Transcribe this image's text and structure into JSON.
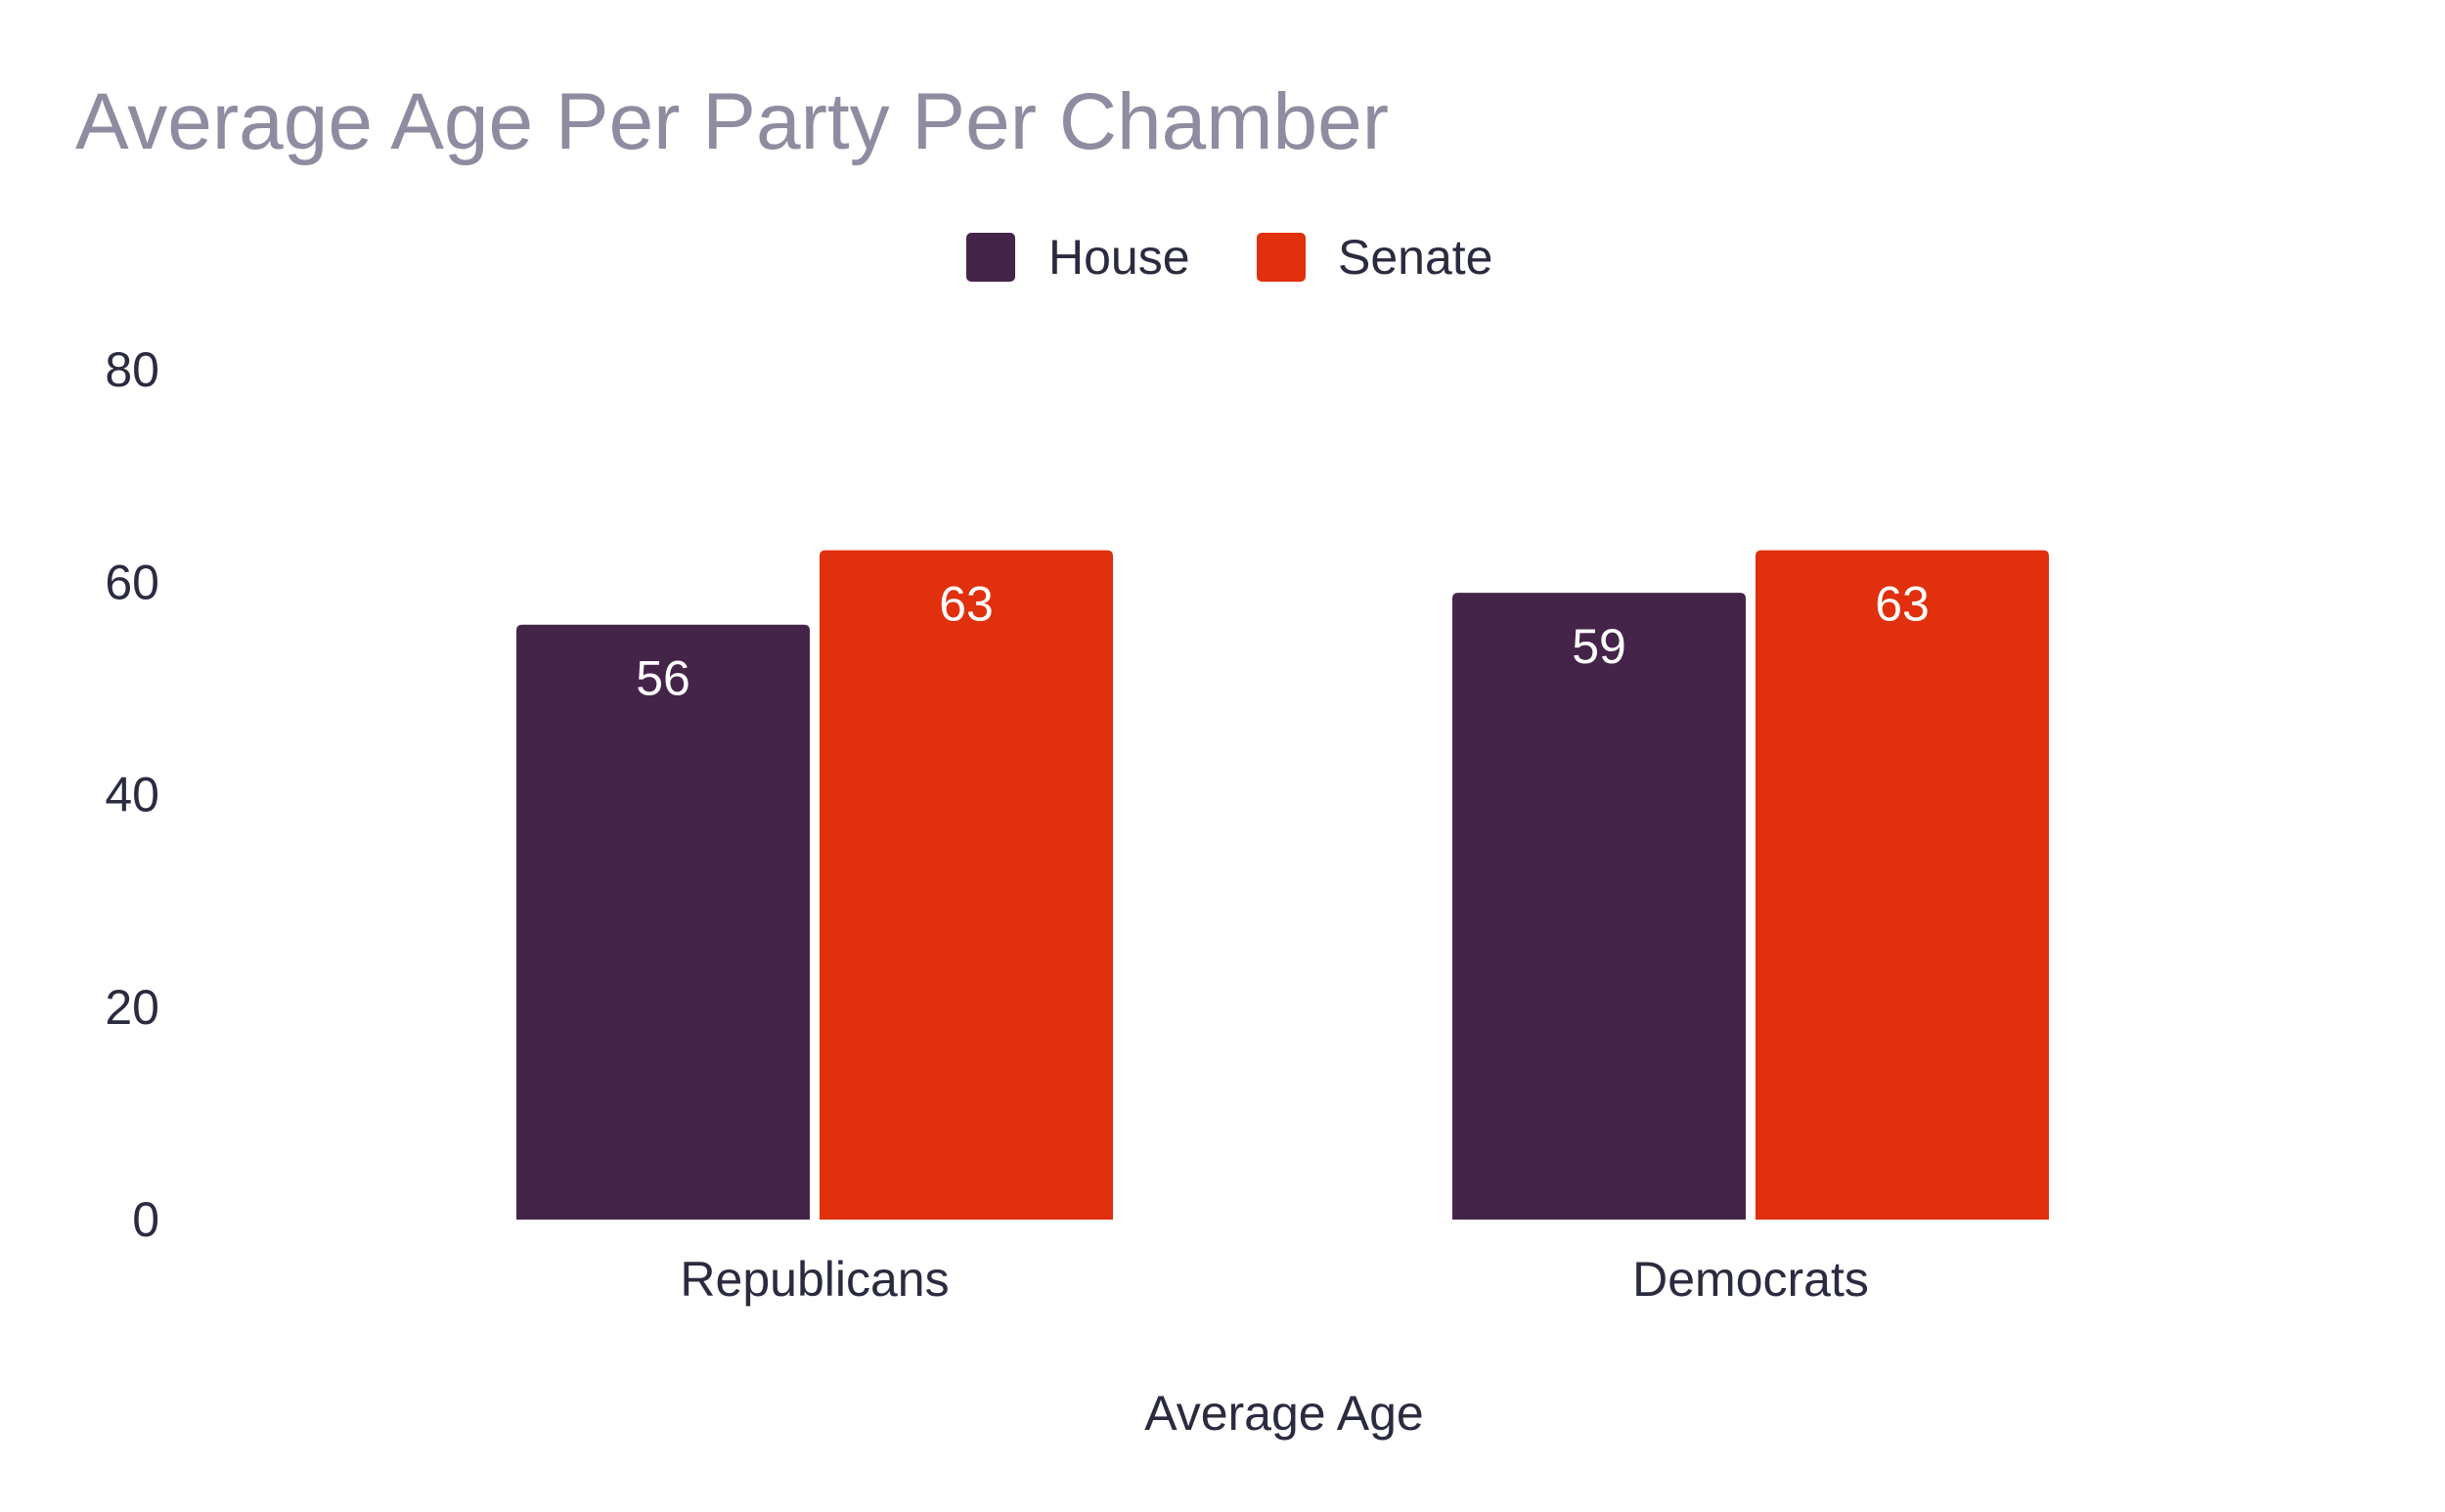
{
  "title": "Average Age Per Party Per Chamber",
  "colors": {
    "house": "#45244a",
    "senate": "#e0300d",
    "axis_text": "#2b2b40",
    "title": "#8e8ca0"
  },
  "chart_data": {
    "type": "bar",
    "categories": [
      "Republicans",
      "Democrats"
    ],
    "series": [
      {
        "name": "House",
        "values": [
          56,
          59
        ],
        "color": "#45244a"
      },
      {
        "name": "Senate",
        "values": [
          63,
          63
        ],
        "color": "#e0300d"
      }
    ],
    "xlabel": "Average Age",
    "ylabel": "",
    "ylim": [
      0,
      80
    ],
    "yticks": [
      0,
      20,
      40,
      60,
      80
    ],
    "grid": false,
    "legend_position": "top-center",
    "data_labels": true
  }
}
